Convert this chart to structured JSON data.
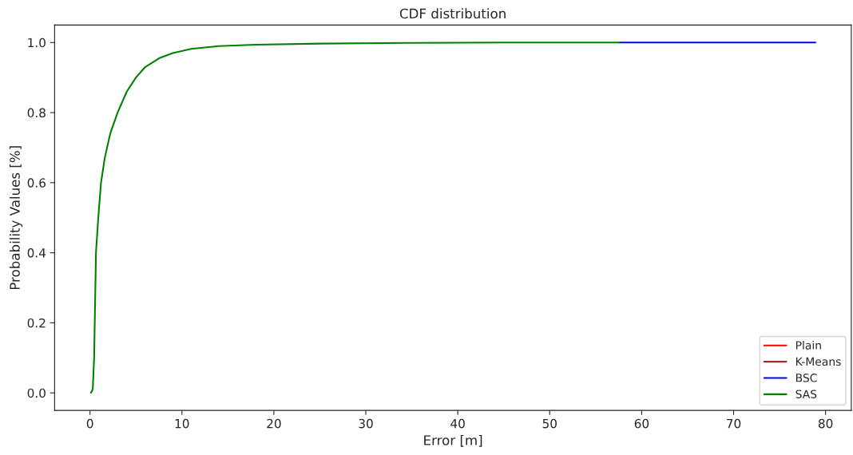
{
  "chart_data": {
    "type": "line",
    "title": "CDF distribution",
    "xlabel": "Error [m]",
    "ylabel": "Probability Values [%]",
    "xlim": [
      -3.85,
      82.8
    ],
    "ylim": [
      -0.05,
      1.05
    ],
    "xticks": [
      0,
      10,
      20,
      30,
      40,
      50,
      60,
      70,
      80
    ],
    "yticks": [
      {
        "value": 0,
        "label": "0.0"
      },
      0.2,
      0.4,
      0.6,
      0.8,
      {
        "value": 1,
        "label": "1.0"
      }
    ],
    "grid": false,
    "legend": "bottom right",
    "marker": "none",
    "line_style": "solid",
    "series": [
      {
        "name": "Plain",
        "color": "#ff0000"
      },
      {
        "name": "K-Means",
        "color": "#a52a2a"
      },
      {
        "name": "BSC",
        "color": "#0000ff",
        "x": [
          57.6,
          78.9
        ],
        "values": [
          1.0,
          1.0
        ]
      },
      {
        "name": "SAS",
        "color": "#008000",
        "x": [
          0.1,
          0.3,
          0.45,
          0.55,
          0.65,
          0.9,
          1.2,
          1.6,
          2.2,
          3,
          4,
          5,
          6,
          7.5,
          9,
          11,
          14,
          18,
          25,
          35,
          45,
          57.6
        ],
        "values": [
          0,
          0.01,
          0.1,
          0.25,
          0.4,
          0.5,
          0.6,
          0.67,
          0.74,
          0.8,
          0.86,
          0.9,
          0.93,
          0.955,
          0.97,
          0.982,
          0.99,
          0.994,
          0.997,
          0.999,
          1.0,
          1.0
        ]
      }
    ]
  }
}
